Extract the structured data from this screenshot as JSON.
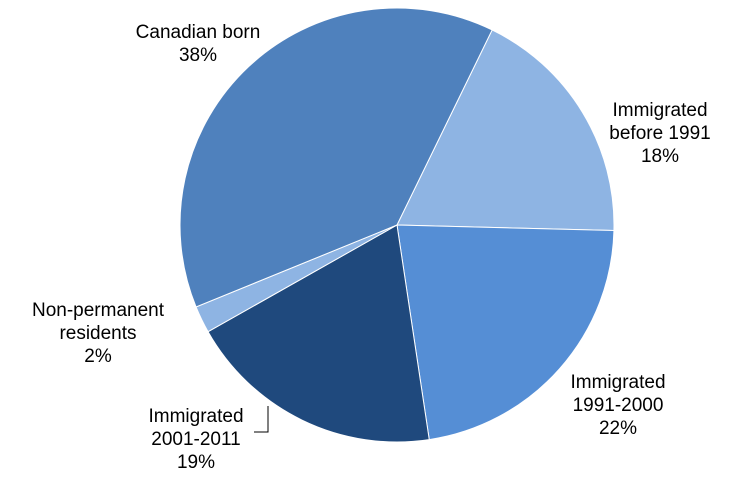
{
  "chart_data": {
    "type": "pie",
    "title": "",
    "start_angle_deg": 26,
    "slices": [
      {
        "name": "Immigrated before 1991",
        "label_lines": [
          "Immigrated",
          "before 1991"
        ],
        "value_label": "18%",
        "value": 18,
        "color": "#8EB4E3"
      },
      {
        "name": "Immigrated 1991-2000",
        "label_lines": [
          "Immigrated",
          "1991-2000"
        ],
        "value_label": "22%",
        "value": 22,
        "color": "#558ED5"
      },
      {
        "name": "Immigrated 2001-2011",
        "label_lines": [
          "Immigrated",
          "2001-2011"
        ],
        "value_label": "19%",
        "value": 19,
        "color": "#1F497D"
      },
      {
        "name": "Non-permanent residents",
        "label_lines": [
          "Non-permanent",
          "residents"
        ],
        "value_label": "2%",
        "value": 2,
        "color": "#8EB4E3"
      },
      {
        "name": "Canadian born",
        "label_lines": [
          "Canadian born"
        ],
        "value_label": "38%",
        "value": 38,
        "color": "#4F81BD"
      }
    ]
  }
}
